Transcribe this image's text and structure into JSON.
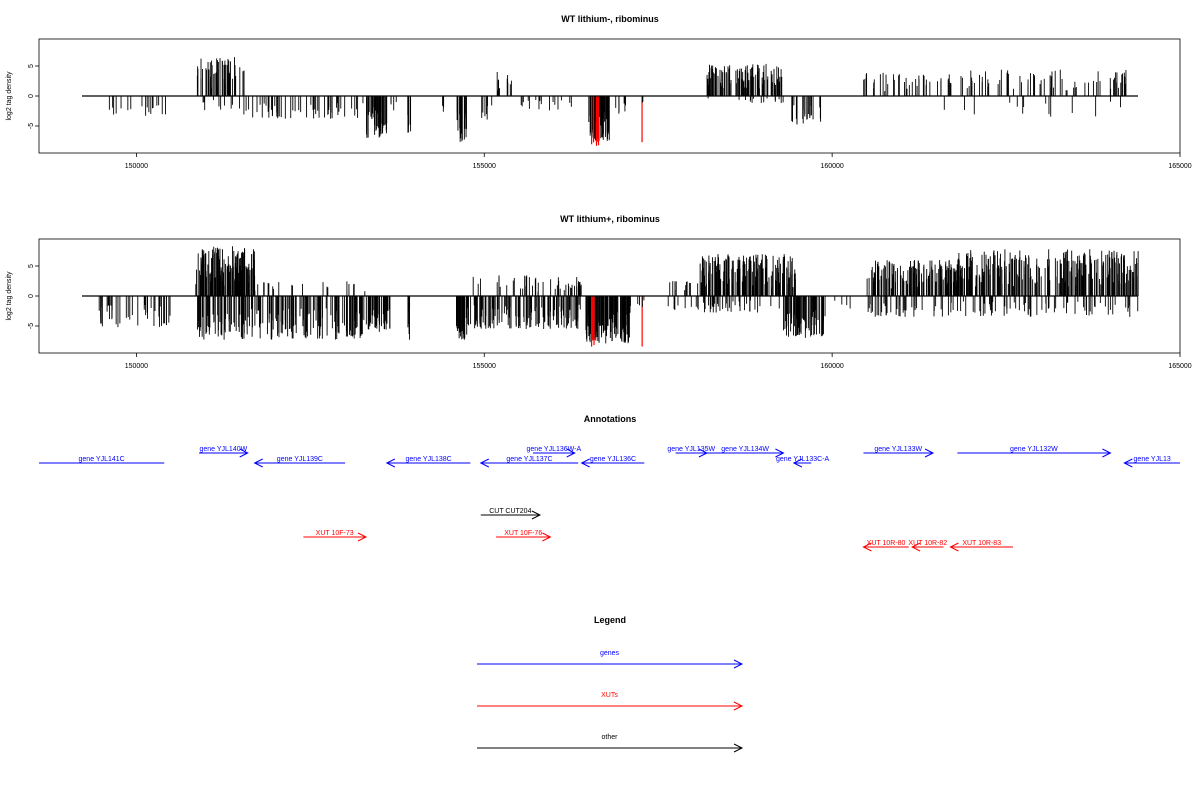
{
  "chart_data": [
    {
      "type": "bar",
      "title": "WT lithium-, ribominus",
      "ylabel": "log2 tag density",
      "xlabel": "",
      "xlim": [
        148600,
        165000
      ],
      "ylim": [
        -9.5,
        9.5
      ],
      "x_ticks": [
        "150000",
        "155000",
        "160000",
        "165000"
      ],
      "y_ticks": [
        "5",
        "0",
        "-5"
      ],
      "grid": false,
      "colors": {
        "default": "#000000",
        "highlight": "#ff0000"
      },
      "segments": [
        {
          "x0": 149500,
          "x1": 150500,
          "kind": "neg",
          "lo": -3.3,
          "n": 18
        },
        {
          "x0": 150870,
          "x1": 151550,
          "kind": "pos",
          "hi": 6.5,
          "n": 55
        },
        {
          "x0": 150900,
          "x1": 151500,
          "kind": "neg",
          "lo": -2.5,
          "n": 10
        },
        {
          "x0": 151500,
          "x1": 153300,
          "kind": "neg",
          "lo": -3.8,
          "n": 55
        },
        {
          "x0": 153300,
          "x1": 153600,
          "kind": "neg",
          "lo": -7.0,
          "n": 45
        },
        {
          "x0": 153650,
          "x1": 153750,
          "kind": "neg",
          "lo": -2.5,
          "n": 4
        },
        {
          "x0": 153900,
          "x1": 153950,
          "kind": "neg",
          "lo": -7.3,
          "n": 6
        },
        {
          "x0": 154400,
          "x1": 154450,
          "kind": "neg",
          "lo": -3.0,
          "n": 3
        },
        {
          "x0": 154600,
          "x1": 154750,
          "kind": "neg",
          "lo": -7.8,
          "n": 22
        },
        {
          "x0": 154950,
          "x1": 155050,
          "kind": "neg",
          "lo": -4.0,
          "n": 6
        },
        {
          "x0": 155150,
          "x1": 155400,
          "kind": "pos",
          "hi": 4.5,
          "n": 10
        },
        {
          "x0": 155100,
          "x1": 156300,
          "kind": "neg",
          "lo": -2.5,
          "n": 18
        },
        {
          "x0": 156500,
          "x1": 156800,
          "kind": "neg",
          "lo": -7.5,
          "n": 70
        },
        {
          "x0": 156530,
          "x1": 156650,
          "kind": "red",
          "lo": -8.5,
          "n": 5
        },
        {
          "x0": 156800,
          "x1": 157050,
          "kind": "neg",
          "lo": -3.0,
          "n": 6
        },
        {
          "x0": 157250,
          "x1": 157270,
          "kind": "red",
          "lo": -8.5,
          "n": 1
        },
        {
          "x0": 157270,
          "x1": 157310,
          "kind": "neg",
          "lo": -2.5,
          "n": 2
        },
        {
          "x0": 158200,
          "x1": 159300,
          "kind": "pos",
          "hi": 5.5,
          "n": 110
        },
        {
          "x0": 158200,
          "x1": 159300,
          "kind": "neg",
          "lo": -1.2,
          "n": 15
        },
        {
          "x0": 159400,
          "x1": 159850,
          "kind": "neg",
          "lo": -4.8,
          "n": 25
        },
        {
          "x0": 160450,
          "x1": 161800,
          "kind": "pos",
          "hi": 4.0,
          "n": 40
        },
        {
          "x0": 161800,
          "x1": 164300,
          "kind": "pos",
          "hi": 4.5,
          "n": 70
        },
        {
          "x0": 161000,
          "x1": 164400,
          "kind": "neg",
          "lo": -3.5,
          "n": 14
        }
      ]
    },
    {
      "type": "bar",
      "title": "WT lithium+, ribominus",
      "ylabel": "log2 tag density",
      "xlabel": "",
      "xlim": [
        148600,
        165000
      ],
      "ylim": [
        -9.5,
        9.5
      ],
      "x_ticks": [
        "150000",
        "155000",
        "160000",
        "165000"
      ],
      "y_ticks": [
        "5",
        "0",
        "-5"
      ],
      "grid": false,
      "colors": {
        "default": "#000000",
        "highlight": "#ff0000"
      },
      "segments": [
        {
          "x0": 149450,
          "x1": 150500,
          "kind": "neg",
          "lo": -5.2,
          "n": 45
        },
        {
          "x0": 150850,
          "x1": 151700,
          "kind": "pos",
          "hi": 8.5,
          "n": 130
        },
        {
          "x0": 150850,
          "x1": 153300,
          "kind": "neg",
          "lo": -7.3,
          "n": 180
        },
        {
          "x0": 151700,
          "x1": 153300,
          "kind": "pos",
          "hi": 2.5,
          "n": 20
        },
        {
          "x0": 153300,
          "x1": 153650,
          "kind": "neg",
          "lo": -6.0,
          "n": 50
        },
        {
          "x0": 153900,
          "x1": 153950,
          "kind": "neg",
          "lo": -7.3,
          "n": 6
        },
        {
          "x0": 154600,
          "x1": 154750,
          "kind": "neg",
          "lo": -7.3,
          "n": 30
        },
        {
          "x0": 154750,
          "x1": 156400,
          "kind": "neg",
          "lo": -5.5,
          "n": 130
        },
        {
          "x0": 154800,
          "x1": 156400,
          "kind": "pos",
          "hi": 3.5,
          "n": 45
        },
        {
          "x0": 156350,
          "x1": 156400,
          "kind": "pos",
          "hi": 3.5,
          "n": 2
        },
        {
          "x0": 156450,
          "x1": 157100,
          "kind": "neg",
          "lo": -8.0,
          "n": 110
        },
        {
          "x0": 156500,
          "x1": 156600,
          "kind": "red",
          "lo": -8.5,
          "n": 4
        },
        {
          "x0": 157250,
          "x1": 157270,
          "kind": "red",
          "lo": -8.5,
          "n": 1
        },
        {
          "x0": 157100,
          "x1": 157300,
          "kind": "neg",
          "lo": -2.5,
          "n": 5
        },
        {
          "x0": 157600,
          "x1": 158150,
          "kind": "pos",
          "hi": 2.5,
          "n": 14
        },
        {
          "x0": 157600,
          "x1": 158150,
          "kind": "neg",
          "lo": -2.5,
          "n": 10
        },
        {
          "x0": 158100,
          "x1": 159500,
          "kind": "pos",
          "hi": 7.0,
          "n": 180
        },
        {
          "x0": 158100,
          "x1": 159300,
          "kind": "neg",
          "lo": -2.8,
          "n": 35
        },
        {
          "x0": 159300,
          "x1": 159900,
          "kind": "neg",
          "lo": -7.0,
          "n": 65
        },
        {
          "x0": 159500,
          "x1": 160450,
          "kind": "neg",
          "lo": -2.5,
          "n": 6
        },
        {
          "x0": 160500,
          "x1": 161800,
          "kind": "pos",
          "hi": 6.0,
          "n": 140
        },
        {
          "x0": 160500,
          "x1": 161800,
          "kind": "neg",
          "lo": -3.5,
          "n": 40
        },
        {
          "x0": 161800,
          "x1": 164400,
          "kind": "pos",
          "hi": 7.8,
          "n": 260
        },
        {
          "x0": 161800,
          "x1": 164400,
          "kind": "neg",
          "lo": -3.5,
          "n": 70
        }
      ]
    }
  ],
  "annotations": {
    "title": "Annotations",
    "features": [
      {
        "label": "gene YJL141C",
        "color": "#0000ff",
        "x0": 148600,
        "x1": 150400,
        "dir": "none",
        "row": 2
      },
      {
        "label": "gene YJL140W",
        "color": "#0000ff",
        "x0": 150900,
        "x1": 151600,
        "dir": "right",
        "row": 1
      },
      {
        "label": "gene YJL139C",
        "color": "#0000ff",
        "x0": 151700,
        "x1": 153000,
        "dir": "left",
        "row": 2
      },
      {
        "label": "gene YJL138C",
        "color": "#0000ff",
        "x0": 153600,
        "x1": 154800,
        "dir": "left",
        "row": 2
      },
      {
        "label": "gene YJL137C",
        "color": "#0000ff",
        "x0": 154950,
        "x1": 156350,
        "dir": "left",
        "row": 2
      },
      {
        "label": "gene YJL136W-A",
        "color": "#0000ff",
        "x0": 155700,
        "x1": 156300,
        "dir": "right",
        "row": 1
      },
      {
        "label": "gene YJL136C",
        "color": "#0000ff",
        "x0": 156400,
        "x1": 157300,
        "dir": "left",
        "row": 2
      },
      {
        "label": "gene YJL135W",
        "color": "#0000ff",
        "x0": 157750,
        "x1": 158200,
        "dir": "right",
        "row": 1
      },
      {
        "label": "gene YJL134W",
        "color": "#0000ff",
        "x0": 158200,
        "x1": 159300,
        "dir": "right",
        "row": 1
      },
      {
        "label": "gene YJL133C-A",
        "color": "#0000ff",
        "x0": 159450,
        "x1": 159700,
        "dir": "left",
        "row": 2
      },
      {
        "label": "gene YJL133W",
        "color": "#0000ff",
        "x0": 160450,
        "x1": 161450,
        "dir": "right",
        "row": 1
      },
      {
        "label": "gene YJL132W",
        "color": "#0000ff",
        "x0": 161800,
        "x1": 164000,
        "dir": "right",
        "row": 1
      },
      {
        "label": "gene YJL13",
        "color": "#0000ff",
        "x0": 164200,
        "x1": 165000,
        "dir": "left",
        "row": 2
      },
      {
        "label": "CUT CUT204",
        "color": "#000000",
        "x0": 154950,
        "x1": 155800,
        "dir": "right",
        "row": 3
      },
      {
        "label": "XUT 10F-73",
        "color": "#ff0000",
        "x0": 152400,
        "x1": 153300,
        "dir": "right",
        "row": 4
      },
      {
        "label": "XUT 10F-76",
        "color": "#ff0000",
        "x0": 155170,
        "x1": 155950,
        "dir": "right",
        "row": 4
      },
      {
        "label": "XUT 10R-80",
        "color": "#ff0000",
        "x0": 160450,
        "x1": 161100,
        "dir": "left",
        "row": 5
      },
      {
        "label": "XUT 10R-82",
        "color": "#ff0000",
        "x0": 161150,
        "x1": 161600,
        "dir": "left",
        "row": 5
      },
      {
        "label": "XUT 10R-83",
        "color": "#ff0000",
        "x0": 161700,
        "x1": 162600,
        "dir": "left",
        "row": 5
      }
    ]
  },
  "legend": {
    "title": "Legend",
    "items": [
      {
        "label": "genes",
        "color": "#0000ff"
      },
      {
        "label": "XUTs",
        "color": "#ff0000"
      },
      {
        "label": "other",
        "color": "#000000"
      }
    ]
  }
}
